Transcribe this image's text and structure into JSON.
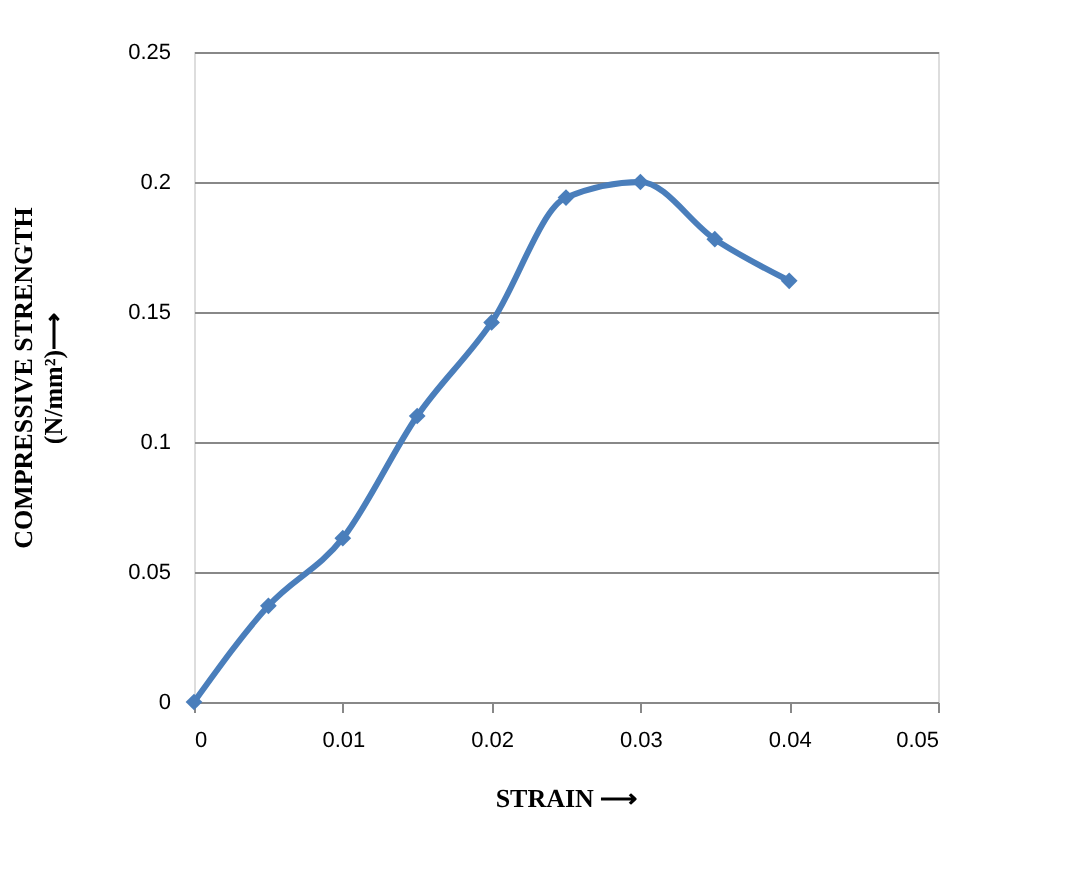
{
  "chart_data": {
    "type": "line",
    "xlabel": "STRAIN ⟶",
    "ylabel": "COMPRESSIVE STRENGTH\n(N/mm²)⟶",
    "x": [
      0,
      0.005,
      0.01,
      0.015,
      0.02,
      0.025,
      0.03,
      0.035,
      0.04
    ],
    "series": [
      {
        "color": "#4a7ebb",
        "values": [
          0,
          0.037,
          0.063,
          0.11,
          0.146,
          0.194,
          0.2,
          0.178,
          0.162
        ]
      }
    ],
    "xlim": [
      0,
      0.05
    ],
    "xticks": [
      0,
      0.01,
      0.02,
      0.03,
      0.04,
      0.05
    ],
    "ylim": [
      0,
      0.25
    ],
    "yticks": [
      0,
      0.05,
      0.1,
      0.15,
      0.2,
      0.25
    ],
    "grid": "y",
    "marker": "diamond",
    "line_style": "solid"
  }
}
